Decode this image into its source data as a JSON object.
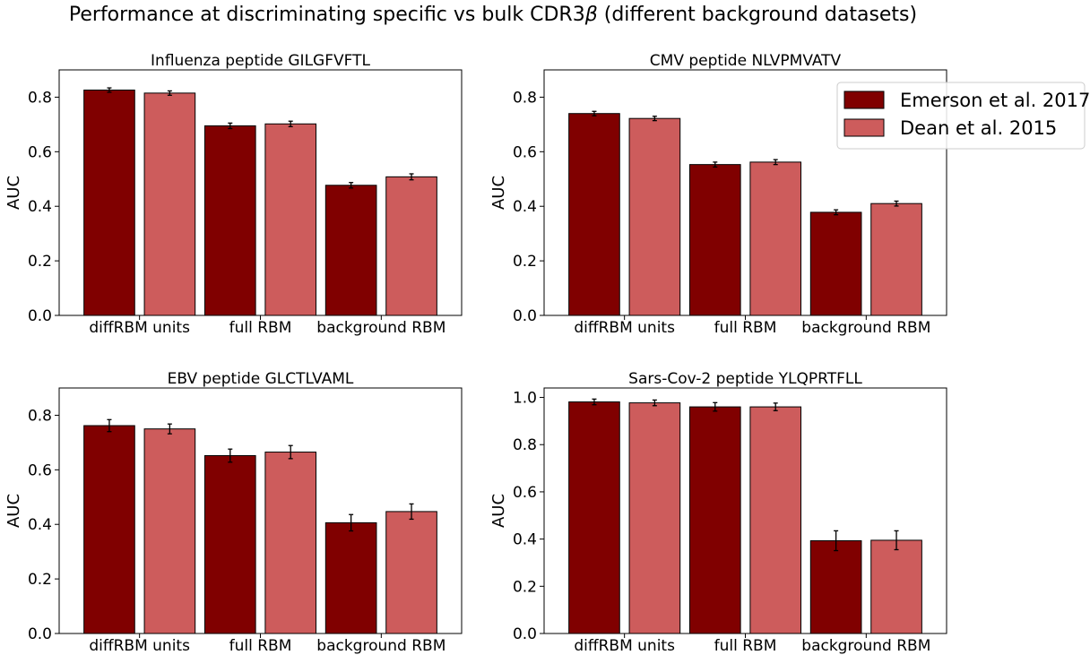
{
  "figure": {
    "suptitle_main": "Performance at discriminating specific vs bulk CDR3",
    "suptitle_symbol": "β",
    "suptitle_rest": " (different background datasets)"
  },
  "colors": {
    "series1": "#800000",
    "series2": "#cd5c5c",
    "edge": "#000000"
  },
  "legend": {
    "placement": "top-right of upper-right panel",
    "entries": [
      "Emerson et al. 2017",
      "Dean et al. 2015"
    ]
  },
  "chart_data": [
    {
      "type": "bar",
      "title": "Influenza peptide GILGFVFTL",
      "ylabel": "AUC",
      "categories": [
        "diffRBM units",
        "full RBM",
        "background RBM"
      ],
      "ylim": [
        0,
        0.9
      ],
      "yticks": [
        0.0,
        0.2,
        0.4,
        0.6,
        0.8
      ],
      "ytick_labels": [
        "0.0",
        "0.2",
        "0.4",
        "0.6",
        "0.8"
      ],
      "series": [
        {
          "name": "Emerson et al. 2017",
          "values": [
            0.826,
            0.695,
            0.477
          ],
          "errors": [
            0.008,
            0.01,
            0.01
          ]
        },
        {
          "name": "Dean et al. 2015",
          "values": [
            0.815,
            0.702,
            0.508
          ],
          "errors": [
            0.008,
            0.01,
            0.011
          ]
        }
      ]
    },
    {
      "type": "bar",
      "title": "CMV peptide NLVPMVATV",
      "ylabel": "AUC",
      "categories": [
        "diffRBM units",
        "full RBM",
        "background RBM"
      ],
      "ylim": [
        0,
        0.9
      ],
      "yticks": [
        0.0,
        0.2,
        0.4,
        0.6,
        0.8
      ],
      "ytick_labels": [
        "0.0",
        "0.2",
        "0.4",
        "0.6",
        "0.8"
      ],
      "series": [
        {
          "name": "Emerson et al. 2017",
          "values": [
            0.74,
            0.553,
            0.378
          ],
          "errors": [
            0.008,
            0.009,
            0.009
          ]
        },
        {
          "name": "Dean et al. 2015",
          "values": [
            0.722,
            0.562,
            0.41
          ],
          "errors": [
            0.008,
            0.009,
            0.009
          ]
        }
      ]
    },
    {
      "type": "bar",
      "title": "EBV peptide GLCTLVAML",
      "ylabel": "AUC",
      "categories": [
        "diffRBM units",
        "full RBM",
        "background RBM"
      ],
      "ylim": [
        0,
        0.9
      ],
      "yticks": [
        0.0,
        0.2,
        0.4,
        0.6,
        0.8
      ],
      "ytick_labels": [
        "0.0",
        "0.2",
        "0.4",
        "0.6",
        "0.8"
      ],
      "series": [
        {
          "name": "Emerson et al. 2017",
          "values": [
            0.762,
            0.652,
            0.406
          ],
          "errors": [
            0.022,
            0.024,
            0.03
          ]
        },
        {
          "name": "Dean et al. 2015",
          "values": [
            0.75,
            0.665,
            0.447
          ],
          "errors": [
            0.018,
            0.024,
            0.028
          ]
        }
      ]
    },
    {
      "type": "bar",
      "title": "Sars-Cov-2 peptide YLQPRTFLL",
      "ylabel": "AUC",
      "categories": [
        "diffRBM units",
        "full RBM",
        "background RBM"
      ],
      "ylim": [
        0,
        1.04
      ],
      "yticks": [
        0.0,
        0.2,
        0.4,
        0.6,
        0.8,
        1.0
      ],
      "ytick_labels": [
        "0.0",
        "0.2",
        "0.4",
        "0.6",
        "0.8",
        "1.0"
      ],
      "series": [
        {
          "name": "Emerson et al. 2017",
          "values": [
            0.981,
            0.96,
            0.393
          ],
          "errors": [
            0.012,
            0.018,
            0.042
          ]
        },
        {
          "name": "Dean et al. 2015",
          "values": [
            0.977,
            0.96,
            0.395
          ],
          "errors": [
            0.012,
            0.016,
            0.04
          ]
        }
      ]
    }
  ]
}
